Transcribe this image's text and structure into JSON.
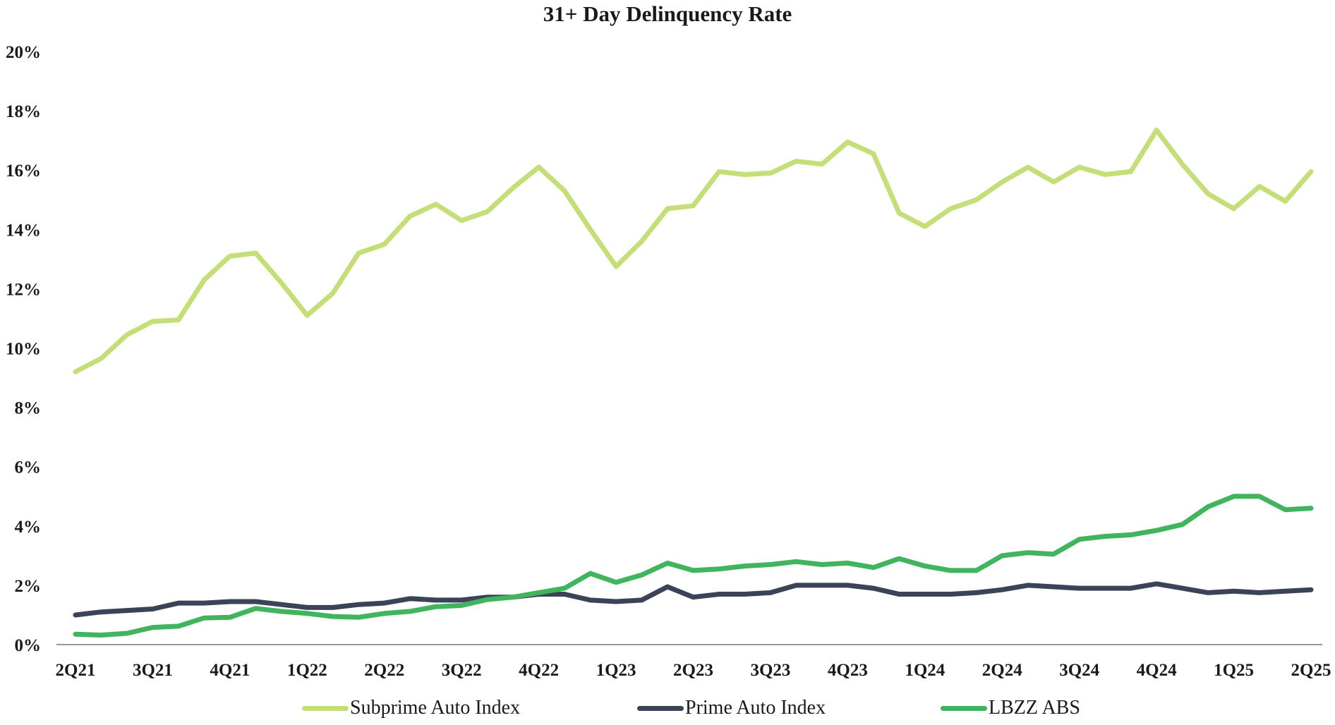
{
  "chart_data": {
    "type": "line",
    "title": "31+ Day Delinquency Rate",
    "xlabel": "",
    "ylabel": "",
    "ylim": [
      0,
      20
    ],
    "y_ticks": [
      "0%",
      "2%",
      "4%",
      "6%",
      "8%",
      "10%",
      "12%",
      "14%",
      "16%",
      "18%",
      "20%"
    ],
    "x_tick_labels": [
      "2Q21",
      "3Q21",
      "4Q21",
      "1Q22",
      "2Q22",
      "3Q22",
      "4Q22",
      "1Q23",
      "2Q23",
      "3Q23",
      "4Q23",
      "1Q24",
      "2Q24",
      "3Q24",
      "4Q24",
      "1Q25",
      "2Q25"
    ],
    "points_per_quarter": 3,
    "grid": false,
    "legend_position": "bottom",
    "series": [
      {
        "name": "Subprime Auto Index",
        "color": "#c5df78",
        "values": [
          9.2,
          9.65,
          10.45,
          10.9,
          10.95,
          12.3,
          13.1,
          13.2,
          12.2,
          11.1,
          11.85,
          13.2,
          13.5,
          14.45,
          14.85,
          14.3,
          14.6,
          15.4,
          16.1,
          15.3,
          14.0,
          12.75,
          13.6,
          14.7,
          14.8,
          15.95,
          15.85,
          15.9,
          16.3,
          16.2,
          16.95,
          16.55,
          14.55,
          14.1,
          14.7,
          15.0,
          15.6,
          16.1,
          15.6,
          16.1,
          15.85,
          15.95,
          17.35,
          16.2,
          15.2,
          14.7,
          15.45,
          14.95,
          15.95
        ]
      },
      {
        "name": "Prime Auto Index",
        "color": "#3a4456",
        "values": [
          1.0,
          1.1,
          1.15,
          1.2,
          1.4,
          1.4,
          1.45,
          1.45,
          1.35,
          1.25,
          1.25,
          1.35,
          1.4,
          1.55,
          1.5,
          1.5,
          1.6,
          1.6,
          1.7,
          1.7,
          1.5,
          1.45,
          1.5,
          1.95,
          1.6,
          1.7,
          1.7,
          1.75,
          2.0,
          2.0,
          2.0,
          1.9,
          1.7,
          1.7,
          1.7,
          1.75,
          1.85,
          2.0,
          1.95,
          1.9,
          1.9,
          1.9,
          2.05,
          1.9,
          1.75,
          1.8,
          1.75,
          1.8,
          1.85
        ]
      },
      {
        "name": "LBZZ ABS",
        "color": "#41b45e",
        "values": [
          0.35,
          0.32,
          0.38,
          0.58,
          0.62,
          0.9,
          0.92,
          1.22,
          1.12,
          1.05,
          0.95,
          0.92,
          1.05,
          1.12,
          1.28,
          1.32,
          1.52,
          1.6,
          1.75,
          1.9,
          2.4,
          2.1,
          2.35,
          2.75,
          2.5,
          2.55,
          2.65,
          2.7,
          2.8,
          2.7,
          2.75,
          2.6,
          2.9,
          2.65,
          2.5,
          2.5,
          3.0,
          3.1,
          3.05,
          3.55,
          3.65,
          3.7,
          3.85,
          4.05,
          4.65,
          5.0,
          5.0,
          4.55,
          4.6
        ]
      }
    ]
  }
}
